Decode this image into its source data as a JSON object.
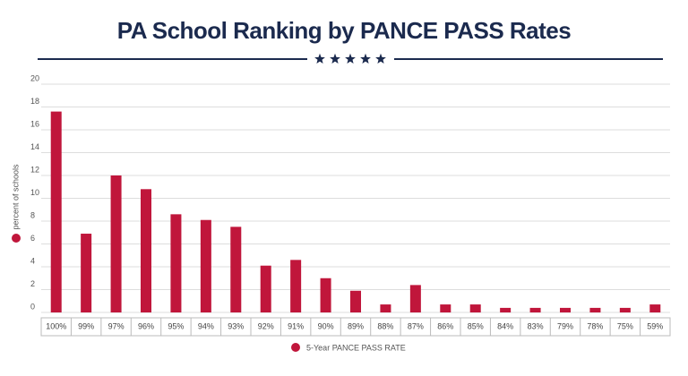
{
  "chart_data": {
    "type": "bar",
    "title": "PA School Ranking by PANCE PASS Rates",
    "y_label": "percent of schools",
    "categories": [
      "100%",
      "99%",
      "97%",
      "96%",
      "95%",
      "94%",
      "93%",
      "92%",
      "91%",
      "90%",
      "89%",
      "88%",
      "87%",
      "86%",
      "85%",
      "84%",
      "83%",
      "79%",
      "78%",
      "75%",
      "59%"
    ],
    "series": [
      {
        "name": "5-Year PANCE PASS RATE",
        "color": "#c0163b",
        "values": [
          17.6,
          6.9,
          12.0,
          10.8,
          8.6,
          8.1,
          7.5,
          4.1,
          4.6,
          3.0,
          1.9,
          0.7,
          2.4,
          0.7,
          0.7,
          0.4,
          0.4,
          0.4,
          0.4,
          0.4,
          0.7
        ]
      }
    ],
    "ylim": [
      0,
      20
    ],
    "yticks": [
      0,
      2,
      4,
      6,
      8,
      10,
      12,
      14,
      16,
      18,
      20
    ],
    "grid": true
  }
}
